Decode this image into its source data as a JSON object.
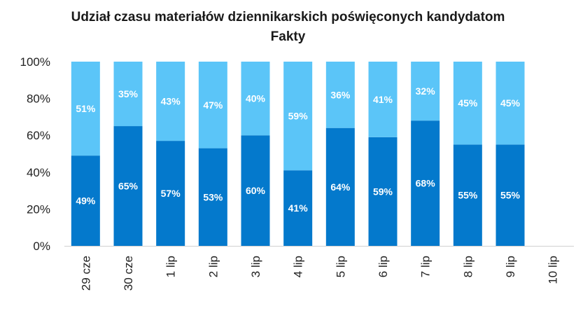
{
  "chart_data": {
    "type": "bar",
    "stacked": true,
    "percent_stacked": true,
    "title_lines": [
      "Udział czasu materiałów dziennikarskich poświęconych kandydatom",
      "Fakty"
    ],
    "categories": [
      "29 cze",
      "30 cze",
      "1 lip",
      "2 lip",
      "3 lip",
      "4 lip",
      "5 lip",
      "6 lip",
      "7 lip",
      "8 lip",
      "9 lip",
      "10 lip"
    ],
    "series": [
      {
        "name": "bottom",
        "color": "#0479cc",
        "values": [
          49,
          65,
          57,
          53,
          60,
          41,
          64,
          59,
          68,
          55,
          55,
          null
        ],
        "labels": [
          "49%",
          "65%",
          "57%",
          "53%",
          "60%",
          "41%",
          "64%",
          "59%",
          "68%",
          "55%",
          "55%",
          null
        ]
      },
      {
        "name": "top",
        "color": "#5bc5f8",
        "values": [
          51,
          35,
          43,
          47,
          40,
          59,
          36,
          41,
          32,
          45,
          45,
          null
        ],
        "labels": [
          "51%",
          "35%",
          "43%",
          "47%",
          "40%",
          "59%",
          "36%",
          "41%",
          "32%",
          "45%",
          "45%",
          null
        ]
      }
    ],
    "y_ticks": [
      0,
      20,
      40,
      60,
      80,
      100
    ],
    "y_tick_labels": [
      "0%",
      "20%",
      "40%",
      "60%",
      "80%",
      "100%"
    ],
    "ylim": [
      0,
      100
    ],
    "xlabel": "",
    "ylabel": "",
    "legend": "none",
    "grid": false
  }
}
